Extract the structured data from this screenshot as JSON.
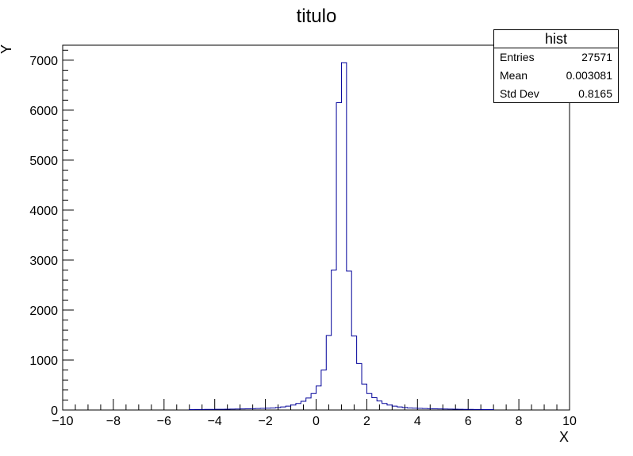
{
  "chart_data": {
    "type": "histogram",
    "title": "titulo",
    "xlabel": "X",
    "ylabel": "Y",
    "xlim": [
      -10,
      10
    ],
    "ylim": [
      0,
      7300
    ],
    "bin_width": 0.2,
    "bin_start": -5,
    "x_ticks": [
      -10,
      -8,
      -6,
      -4,
      -2,
      0,
      2,
      4,
      6,
      8,
      10
    ],
    "x_tick_labels": [
      "−10",
      "−8",
      "−6",
      "−4",
      "−2",
      "0",
      "2",
      "4",
      "6",
      "8",
      "10"
    ],
    "y_ticks": [
      0,
      1000,
      2000,
      3000,
      4000,
      5000,
      6000,
      7000
    ],
    "y_tick_labels": [
      "0",
      "1000",
      "2000",
      "3000",
      "4000",
      "5000",
      "6000",
      "7000"
    ],
    "values": [
      8,
      9,
      10,
      11,
      12,
      13,
      14,
      16,
      17,
      19,
      21,
      23,
      26,
      29,
      33,
      37,
      42,
      50,
      62,
      78,
      100,
      130,
      175,
      240,
      330,
      480,
      800,
      1490,
      2800,
      6150,
      6950,
      2780,
      1480,
      930,
      520,
      330,
      245,
      180,
      130,
      100,
      78,
      62,
      50,
      42,
      37,
      33,
      29,
      26,
      23,
      21,
      19,
      17,
      15,
      14,
      12,
      11,
      10,
      9,
      8,
      7
    ],
    "line_color": "#000099"
  },
  "stats": {
    "title": "hist",
    "rows": [
      {
        "label": "Entries",
        "value": "27571"
      },
      {
        "label": "Mean",
        "value": "0.003081"
      },
      {
        "label": "Std Dev",
        "value": "0.8165"
      }
    ]
  }
}
